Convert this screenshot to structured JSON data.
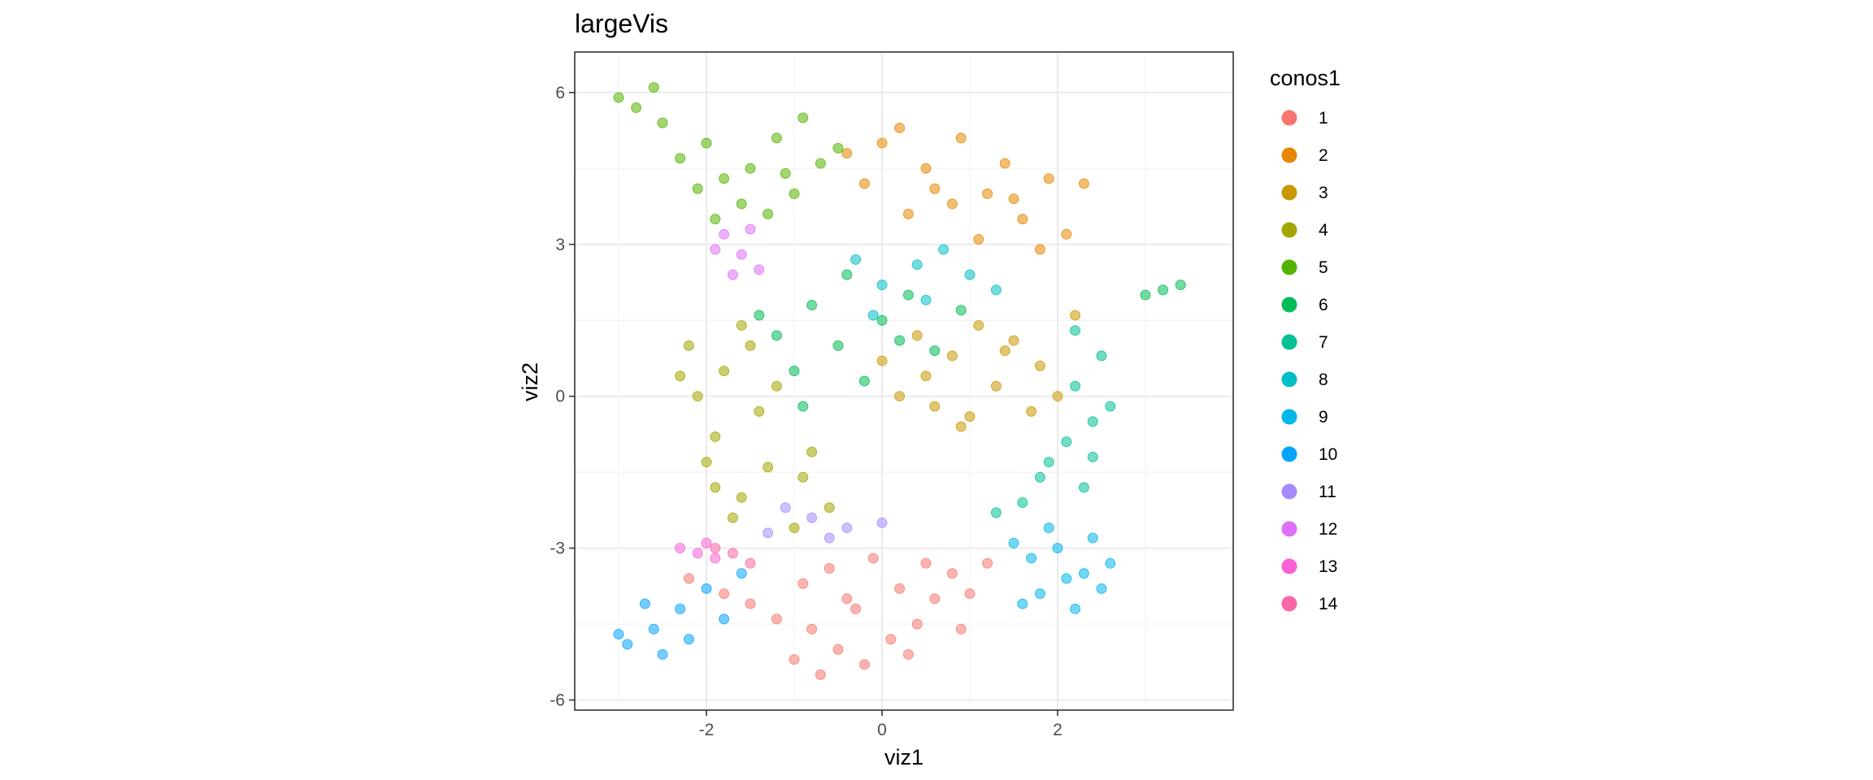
{
  "chart_data": {
    "type": "scatter",
    "title": "largeVis",
    "xlabel": "viz1",
    "ylabel": "viz2",
    "xlim": [
      -3.5,
      4.0
    ],
    "ylim": [
      -6.2,
      6.8
    ],
    "x_ticks": [
      -2,
      0,
      2
    ],
    "x_tick_labels": [
      "-2",
      "0",
      "2"
    ],
    "y_ticks": [
      -6,
      -3,
      0,
      3,
      6
    ],
    "y_tick_labels": [
      "-6",
      "-3",
      "0",
      "3",
      "6"
    ],
    "grid": true,
    "legend_position": "right",
    "legend": {
      "title": "conos1",
      "entries": [
        {
          "label": "1",
          "color": "#F8766D"
        },
        {
          "label": "2",
          "color": "#E58700"
        },
        {
          "label": "3",
          "color": "#C99800"
        },
        {
          "label": "4",
          "color": "#A3A500"
        },
        {
          "label": "5",
          "color": "#53B400"
        },
        {
          "label": "6",
          "color": "#00BC56"
        },
        {
          "label": "7",
          "color": "#00C094"
        },
        {
          "label": "8",
          "color": "#00BFC4"
        },
        {
          "label": "9",
          "color": "#00B6EB"
        },
        {
          "label": "10",
          "color": "#06A4FF"
        },
        {
          "label": "11",
          "color": "#A58AFF"
        },
        {
          "label": "12",
          "color": "#DF70F8"
        },
        {
          "label": "13",
          "color": "#FB61D7"
        },
        {
          "label": "14",
          "color": "#FF66A8"
        }
      ]
    },
    "series": [
      {
        "name": "1",
        "color": "#F8766D",
        "points": [
          [
            -0.3,
            -4.2
          ],
          [
            -0.8,
            -4.6
          ],
          [
            0.2,
            -3.8
          ],
          [
            -0.5,
            -5.0
          ],
          [
            0.6,
            -4.0
          ],
          [
            -1.2,
            -4.4
          ],
          [
            0.1,
            -4.8
          ],
          [
            -0.9,
            -3.7
          ],
          [
            0.8,
            -3.5
          ],
          [
            -0.2,
            -5.3
          ],
          [
            -1.5,
            -4.1
          ],
          [
            0.4,
            -4.5
          ],
          [
            -0.6,
            -3.4
          ],
          [
            1.0,
            -3.9
          ],
          [
            -0.1,
            -3.2
          ],
          [
            -1.8,
            -3.9
          ],
          [
            0.3,
            -5.1
          ],
          [
            -1.0,
            -5.2
          ],
          [
            0.9,
            -4.6
          ],
          [
            -0.4,
            -4.0
          ],
          [
            1.2,
            -3.3
          ],
          [
            -2.2,
            -3.6
          ],
          [
            -0.7,
            -5.5
          ],
          [
            0.5,
            -3.3
          ]
        ]
      },
      {
        "name": "2",
        "color": "#E58700",
        "points": [
          [
            0.5,
            4.5
          ],
          [
            1.2,
            4.0
          ],
          [
            0.0,
            5.0
          ],
          [
            1.6,
            3.5
          ],
          [
            0.8,
            3.8
          ],
          [
            -0.2,
            4.2
          ],
          [
            1.9,
            4.3
          ],
          [
            0.3,
            3.6
          ],
          [
            1.4,
            4.6
          ],
          [
            0.9,
            5.1
          ],
          [
            2.1,
            3.2
          ],
          [
            -0.4,
            4.8
          ],
          [
            1.1,
            3.1
          ],
          [
            0.6,
            4.1
          ],
          [
            1.8,
            2.9
          ],
          [
            2.3,
            4.2
          ],
          [
            0.2,
            5.3
          ],
          [
            1.5,
            3.9
          ]
        ]
      },
      {
        "name": "3",
        "color": "#C99800",
        "points": [
          [
            0.8,
            0.8
          ],
          [
            1.3,
            0.2
          ],
          [
            0.4,
            1.2
          ],
          [
            1.8,
            0.6
          ],
          [
            0.2,
            0.0
          ],
          [
            1.0,
            -0.4
          ],
          [
            1.5,
            1.1
          ],
          [
            0.6,
            -0.2
          ],
          [
            2.0,
            0.0
          ],
          [
            1.1,
            1.4
          ],
          [
            0.0,
            0.7
          ],
          [
            1.7,
            -0.3
          ],
          [
            2.2,
            1.6
          ],
          [
            0.5,
            0.4
          ],
          [
            1.4,
            0.9
          ],
          [
            0.9,
            -0.6
          ]
        ]
      },
      {
        "name": "4",
        "color": "#A3A500",
        "points": [
          [
            -1.8,
            0.5
          ],
          [
            -2.1,
            0.0
          ],
          [
            -1.5,
            1.0
          ],
          [
            -1.9,
            -0.8
          ],
          [
            -1.3,
            -1.4
          ],
          [
            -1.6,
            -2.0
          ],
          [
            -0.9,
            -1.6
          ],
          [
            -2.3,
            0.4
          ],
          [
            -1.2,
            0.2
          ],
          [
            -1.7,
            -2.4
          ],
          [
            -0.6,
            -2.2
          ],
          [
            -2.0,
            -1.3
          ],
          [
            -1.4,
            -0.3
          ],
          [
            -1.0,
            -2.6
          ],
          [
            -2.2,
            1.0
          ],
          [
            -1.6,
            1.4
          ],
          [
            -0.8,
            -1.1
          ],
          [
            -1.9,
            -1.8
          ]
        ]
      },
      {
        "name": "5",
        "color": "#53B400",
        "points": [
          [
            -2.0,
            5.0
          ],
          [
            -1.5,
            4.5
          ],
          [
            -2.5,
            5.4
          ],
          [
            -1.0,
            4.0
          ],
          [
            -3.0,
            5.9
          ],
          [
            -1.8,
            4.3
          ],
          [
            -1.2,
            5.1
          ],
          [
            -2.3,
            4.7
          ],
          [
            -0.7,
            4.6
          ],
          [
            -1.6,
            3.8
          ],
          [
            -2.8,
            5.7
          ],
          [
            -0.9,
            5.5
          ],
          [
            -2.1,
            4.1
          ],
          [
            -1.3,
            3.6
          ],
          [
            -2.6,
            6.1
          ],
          [
            -0.5,
            4.9
          ],
          [
            -1.9,
            3.5
          ],
          [
            -1.1,
            4.4
          ]
        ]
      },
      {
        "name": "6",
        "color": "#00BC56",
        "points": [
          [
            -0.5,
            1.0
          ],
          [
            0.0,
            1.5
          ],
          [
            -1.0,
            0.5
          ],
          [
            0.3,
            2.0
          ],
          [
            -0.8,
            1.8
          ],
          [
            0.6,
            0.9
          ],
          [
            -0.2,
            0.3
          ],
          [
            -1.2,
            1.2
          ],
          [
            0.9,
            1.7
          ],
          [
            -0.4,
            2.4
          ],
          [
            3.2,
            2.1
          ],
          [
            3.4,
            2.2
          ],
          [
            3.0,
            2.0
          ],
          [
            -0.9,
            -0.2
          ],
          [
            0.2,
            1.1
          ],
          [
            -1.4,
            1.6
          ]
        ]
      },
      {
        "name": "7",
        "color": "#00C094",
        "points": [
          [
            2.2,
            0.2
          ],
          [
            2.4,
            -0.5
          ],
          [
            1.9,
            -1.3
          ],
          [
            2.3,
            -1.8
          ],
          [
            1.6,
            -2.1
          ],
          [
            2.5,
            0.8
          ],
          [
            2.1,
            -0.9
          ],
          [
            1.3,
            -2.3
          ],
          [
            2.6,
            -0.2
          ],
          [
            1.8,
            -1.6
          ],
          [
            2.2,
            1.3
          ],
          [
            2.4,
            -1.2
          ]
        ]
      },
      {
        "name": "8",
        "color": "#00BFC4",
        "points": [
          [
            0.0,
            2.2
          ],
          [
            0.5,
            1.9
          ],
          [
            -0.3,
            2.7
          ],
          [
            1.0,
            2.4
          ],
          [
            0.7,
            2.9
          ],
          [
            -0.1,
            1.6
          ],
          [
            1.3,
            2.1
          ],
          [
            0.4,
            2.6
          ]
        ]
      },
      {
        "name": "9",
        "color": "#00B6EB",
        "points": [
          [
            2.0,
            -3.0
          ],
          [
            2.3,
            -3.5
          ],
          [
            1.7,
            -3.2
          ],
          [
            2.5,
            -3.8
          ],
          [
            1.9,
            -2.6
          ],
          [
            2.2,
            -4.2
          ],
          [
            1.5,
            -2.9
          ],
          [
            2.6,
            -3.3
          ],
          [
            1.8,
            -3.9
          ],
          [
            2.4,
            -2.8
          ],
          [
            1.6,
            -4.1
          ],
          [
            2.1,
            -3.6
          ]
        ]
      },
      {
        "name": "10",
        "color": "#06A4FF",
        "points": [
          [
            -2.6,
            -4.6
          ],
          [
            -2.3,
            -4.2
          ],
          [
            -2.9,
            -4.9
          ],
          [
            -2.0,
            -3.8
          ],
          [
            -2.5,
            -5.1
          ],
          [
            -1.8,
            -4.4
          ],
          [
            -2.7,
            -4.1
          ],
          [
            -2.2,
            -4.8
          ],
          [
            -1.6,
            -3.5
          ],
          [
            -3.0,
            -4.7
          ]
        ]
      },
      {
        "name": "11",
        "color": "#A58AFF",
        "points": [
          [
            -0.8,
            -2.4
          ],
          [
            -0.4,
            -2.6
          ],
          [
            -1.1,
            -2.2
          ],
          [
            0.0,
            -2.5
          ],
          [
            -0.6,
            -2.8
          ],
          [
            -1.3,
            -2.7
          ]
        ]
      },
      {
        "name": "12",
        "color": "#DF70F8",
        "points": [
          [
            -1.6,
            2.8
          ],
          [
            -1.8,
            3.2
          ],
          [
            -1.4,
            2.5
          ],
          [
            -1.9,
            2.9
          ],
          [
            -1.5,
            3.3
          ],
          [
            -1.7,
            2.4
          ]
        ]
      },
      {
        "name": "13",
        "color": "#FB61D7",
        "points": [
          [
            -2.1,
            -3.1
          ],
          [
            -2.3,
            -3.0
          ],
          [
            -1.9,
            -3.2
          ],
          [
            -2.0,
            -2.9
          ]
        ]
      },
      {
        "name": "14",
        "color": "#FF66A8",
        "points": [
          [
            -1.7,
            -3.1
          ],
          [
            -1.5,
            -3.3
          ],
          [
            -1.9,
            -3.0
          ]
        ]
      }
    ]
  }
}
